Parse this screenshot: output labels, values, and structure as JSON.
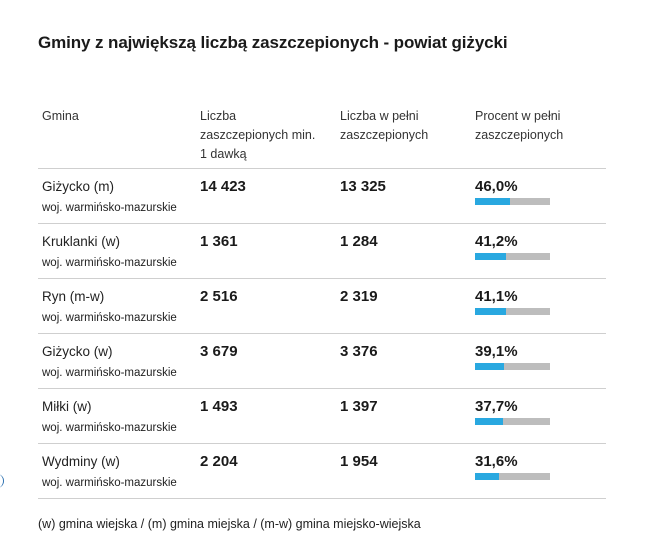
{
  "title": "Gminy z największą liczbą zaszczepionych - powiat giżycki",
  "headers": {
    "gmina": "Gmina",
    "dose1": "Liczba zaszczepionych min. 1 dawką",
    "full": "Liczba w pełni zaszczepionych",
    "percent": "Procent w pełni zaszczepionych"
  },
  "colors": {
    "bar_fill": "#29a8e0",
    "bar_track": "#bdbdbd"
  },
  "chart_data": {
    "type": "table",
    "title": "Gminy z największą liczbą zaszczepionych - powiat giżycki",
    "columns": [
      "Gmina",
      "Liczba zaszczepionych min. 1 dawką",
      "Liczba w pełni zaszczepionych",
      "Procent w pełni zaszczepionych"
    ],
    "rows": [
      {
        "name": "Giżycko (m)",
        "region": "woj. warmińsko-mazurskie",
        "dose1": "14 423",
        "full": "13 325",
        "percent_label": "46,0%",
        "percent": 46.0
      },
      {
        "name": "Kruklanki (w)",
        "region": "woj. warmińsko-mazurskie",
        "dose1": "1 361",
        "full": "1 284",
        "percent_label": "41,2%",
        "percent": 41.2
      },
      {
        "name": "Ryn (m-w)",
        "region": "woj. warmińsko-mazurskie",
        "dose1": "2 516",
        "full": "2 319",
        "percent_label": "41,1%",
        "percent": 41.1
      },
      {
        "name": "Giżycko (w)",
        "region": "woj. warmińsko-mazurskie",
        "dose1": "3 679",
        "full": "3 376",
        "percent_label": "39,1%",
        "percent": 39.1
      },
      {
        "name": "Miłki (w)",
        "region": "woj. warmińsko-mazurskie",
        "dose1": "1 493",
        "full": "1 397",
        "percent_label": "37,7%",
        "percent": 37.7
      },
      {
        "name": "Wydminy (w)",
        "region": "woj. warmińsko-mazurskie",
        "dose1": "2 204",
        "full": "1 954",
        "percent_label": "31,6%",
        "percent": 31.6
      }
    ],
    "bar_scale_max_percent": 100
  },
  "footnote": "(w) gmina wiejska / (m) gmina miejska / (m-w) gmina miejsko-wiejska"
}
